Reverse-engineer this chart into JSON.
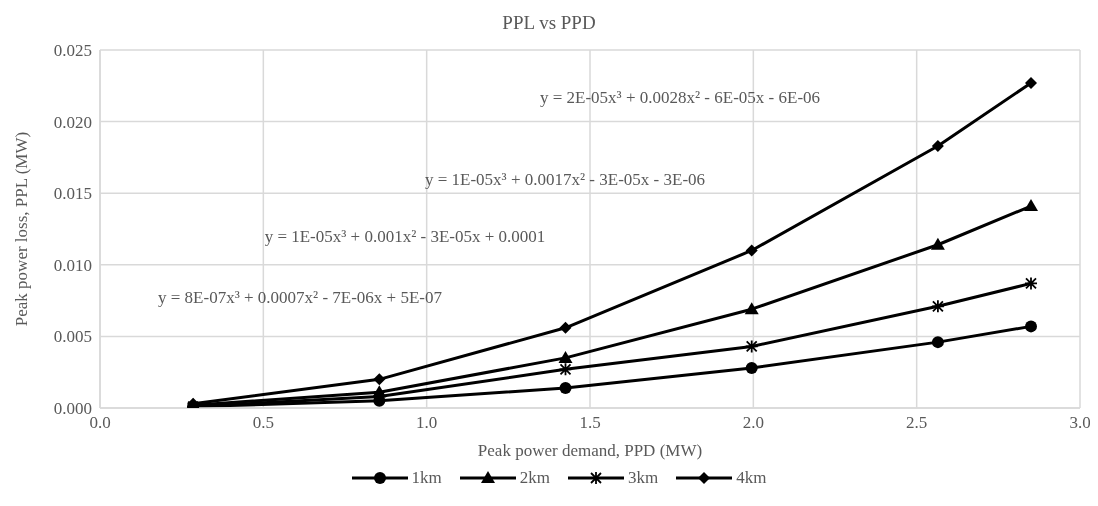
{
  "chart_data": {
    "type": "line",
    "title": "PPL vs PPD",
    "xlabel": "Peak power demand, PPD (MW)",
    "ylabel": "Peak power loss, PPL (MW)",
    "x": [
      0.285,
      0.855,
      1.425,
      1.995,
      2.565,
      2.85
    ],
    "series": [
      {
        "name": "1km",
        "color": "#000000",
        "marker": "circle",
        "values": [
          0.0001,
          0.0005,
          0.0014,
          0.0028,
          0.0046,
          0.0057
        ]
      },
      {
        "name": "2km",
        "color": "#000000",
        "marker": "triangle",
        "values": [
          0.0002,
          0.0011,
          0.0035,
          0.0069,
          0.0114,
          0.0141
        ]
      },
      {
        "name": "3km",
        "color": "#000000",
        "marker": "cross",
        "values": [
          0.0001,
          0.0008,
          0.0027,
          0.0043,
          0.0071,
          0.0087
        ]
      },
      {
        "name": "4km",
        "color": "#000000",
        "marker": "diamond",
        "values": [
          0.0003,
          0.002,
          0.0056,
          0.011,
          0.0183,
          0.0227
        ]
      }
    ],
    "annotations": [
      "y = 8E-07x³ + 0.0007x² - 7E-06x + 5E-07",
      "y = 1E-05x³ + 0.001x² - 3E-05x + 0.0001",
      "y = 1E-05x³ + 0.0017x² - 3E-05x - 3E-06",
      "y = 2E-05x³ + 0.0028x² - 6E-05x - 6E-06"
    ],
    "xlim": [
      0,
      3
    ],
    "xticks": [
      {
        "value": 0,
        "label": "0.0"
      },
      {
        "value": 0.5,
        "label": "0.5"
      },
      {
        "value": 1,
        "label": "1.0"
      },
      {
        "value": 1.5,
        "label": "1.5"
      },
      {
        "value": 2,
        "label": "2.0"
      },
      {
        "value": 2.5,
        "label": "2.5"
      },
      {
        "value": 3,
        "label": "3.0"
      }
    ],
    "ylim": [
      0,
      0.025
    ],
    "yticks": [
      {
        "value": 0,
        "label": "0.000"
      },
      {
        "value": 0.005,
        "label": "0.005"
      },
      {
        "value": 0.01,
        "label": "0.010"
      },
      {
        "value": 0.015,
        "label": "0.015"
      },
      {
        "value": 0.02,
        "label": "0.020"
      },
      {
        "value": 0.025,
        "label": "0.025"
      }
    ],
    "grid": true,
    "legend": "bottom",
    "line_style": "solid"
  }
}
